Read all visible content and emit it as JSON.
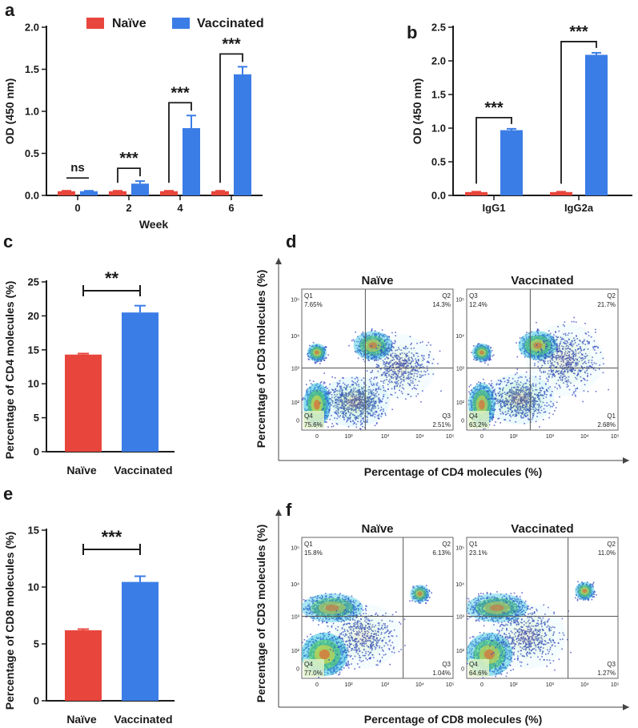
{
  "colors": {
    "naive": "#e8453c",
    "vaccinated": "#3b7de6",
    "axis": "#1a1a1a"
  },
  "chart_data": [
    {
      "panel": "a",
      "type": "bar",
      "xlabel": "Week",
      "ylabel": "OD (450 nm)",
      "categories": [
        "0",
        "2",
        "4",
        "6"
      ],
      "legend": [
        "Naïve",
        "Vaccinated"
      ],
      "legend_position": "top",
      "ylim": [
        0,
        2.0
      ],
      "yticks": [
        "0.0",
        "0.5",
        "1.0",
        "1.5",
        "2.0"
      ],
      "series": [
        {
          "name": "Naïve",
          "values": [
            0.05,
            0.05,
            0.05,
            0.05
          ],
          "errors": [
            0.005,
            0.005,
            0.005,
            0.005
          ]
        },
        {
          "name": "Vaccinated",
          "values": [
            0.05,
            0.14,
            0.8,
            1.44
          ],
          "errors": [
            0.005,
            0.03,
            0.15,
            0.09
          ]
        }
      ],
      "significance": [
        "ns",
        "***",
        "***",
        "***"
      ]
    },
    {
      "panel": "b",
      "type": "bar",
      "ylabel": "OD (450 nm)",
      "categories": [
        "IgG1",
        "IgG2a"
      ],
      "ylim": [
        0,
        2.5
      ],
      "yticks": [
        "0.0",
        "0.5",
        "1.0",
        "1.5",
        "2.0",
        "2.5"
      ],
      "series": [
        {
          "name": "Naïve",
          "values": [
            0.05,
            0.05
          ],
          "errors": [
            0.005,
            0.005
          ]
        },
        {
          "name": "Vaccinated",
          "values": [
            0.97,
            2.09
          ],
          "errors": [
            0.02,
            0.03
          ]
        }
      ],
      "significance": [
        "***",
        "***"
      ]
    },
    {
      "panel": "c",
      "type": "bar",
      "ylabel": "Percentage of CD4 molecules (%)",
      "categories": [
        "Naïve",
        "Vaccinated"
      ],
      "ylim": [
        0,
        25
      ],
      "yticks": [
        "0",
        "5",
        "10",
        "15",
        "20",
        "25"
      ],
      "values": [
        14.3,
        20.5
      ],
      "errors": [
        0.15,
        1.0
      ],
      "significance": "**"
    },
    {
      "panel": "e",
      "type": "bar",
      "ylabel": "Percentage of CD8 molecules (%)",
      "categories": [
        "Naïve",
        "Vaccinated"
      ],
      "ylim": [
        0,
        15
      ],
      "yticks": [
        "0",
        "5",
        "10",
        "15"
      ],
      "values": [
        6.2,
        10.45
      ],
      "errors": [
        0.1,
        0.5
      ],
      "significance": "***"
    },
    {
      "panel": "d",
      "type": "scatter",
      "subtype": "flow-cytometry-density",
      "xlabel": "Percentage of CD4 molecules (%)",
      "ylabel": "Percentage of CD3 molecules (%)",
      "tick_labels": [
        "0",
        "10²",
        "10³",
        "10⁴",
        "10⁵"
      ],
      "plots": [
        {
          "title": "Naïve",
          "quadrants": {
            "tl_label": "Q1",
            "tl": "7.65%",
            "tr_label": "Q2",
            "tr": "14.3%",
            "bl_label": "Q4",
            "bl": "75.6%",
            "br_label": "Q3",
            "br": "2.51%"
          }
        },
        {
          "title": "Vaccinated",
          "quadrants": {
            "tl_label": "Q3",
            "tl": "12.4%",
            "tr_label": "Q2",
            "tr": "21.7%",
            "bl_label": "Q4",
            "bl": "63.2%",
            "br_label": "Q1",
            "br": "2.68%"
          }
        }
      ]
    },
    {
      "panel": "f",
      "type": "scatter",
      "subtype": "flow-cytometry-density",
      "xlabel": "Percentage of CD8 molecules (%)",
      "ylabel": "Percentage of CD3 molecules (%)",
      "tick_labels": [
        "0",
        "10²",
        "10³",
        "10⁴",
        "10⁵"
      ],
      "plots": [
        {
          "title": "Naïve",
          "quadrants": {
            "tl_label": "Q1",
            "tl": "15.8%",
            "tr_label": "Q2",
            "tr": "6.13%",
            "bl_label": "Q4",
            "bl": "77.0%",
            "br_label": "Q3",
            "br": "1.04%"
          }
        },
        {
          "title": "Vaccinated",
          "quadrants": {
            "tl_label": "Q1",
            "tl": "23.1%",
            "tr_label": "Q2",
            "tr": "11.0%",
            "bl_label": "Q4",
            "bl": "64.6%",
            "br_label": "Q3",
            "br": "1.27%"
          }
        }
      ]
    }
  ],
  "panel_labels": [
    "a",
    "b",
    "c",
    "d",
    "e",
    "f"
  ]
}
